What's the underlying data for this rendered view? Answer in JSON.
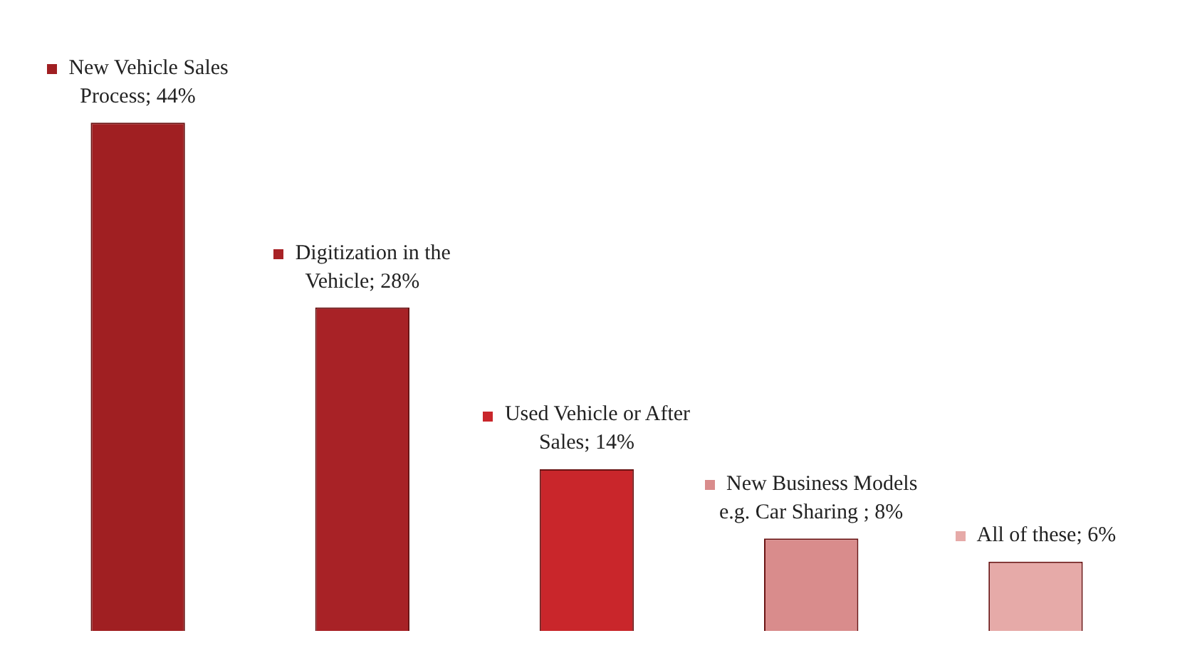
{
  "chart_data": {
    "type": "bar",
    "categories": [
      null,
      null,
      null,
      null,
      null
    ],
    "values": [
      44,
      28,
      14,
      8,
      6
    ],
    "colors": [
      "#a01f22",
      "#a82226",
      "#c9262b",
      "#d98c8c",
      "#e6aaa8"
    ],
    "value_labels": [
      "New Vehicle Sales Process; 44%",
      "Digitization in the Vehicle; 28%",
      "Used Vehicle or After Sales; 14%",
      "New Business Models e.g. Car Sharing ; 8%",
      "All of these; 6%"
    ],
    "tick_labels": false,
    "grid": false,
    "legend": false
  }
}
